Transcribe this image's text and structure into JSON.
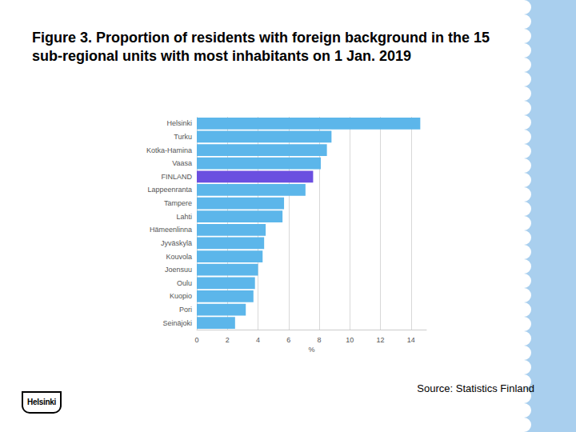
{
  "chart_data": {
    "type": "bar",
    "orientation": "horizontal",
    "title": "Figure 3. Proportion of residents with foreign background in the 15 sub-regional units with most inhabitants on 1 Jan. 2019",
    "categories": [
      "Helsinki",
      "Turku",
      "Kotka-Hamina",
      "Vaasa",
      "FINLAND",
      "Lappeenranta",
      "Tampere",
      "Lahti",
      "Hämeenlinna",
      "Jyväskylä",
      "Kouvola",
      "Joensuu",
      "Oulu",
      "Kuopio",
      "Pori",
      "Seinäjoki"
    ],
    "values": [
      14.6,
      8.8,
      8.5,
      8.1,
      7.6,
      7.1,
      5.7,
      5.6,
      4.5,
      4.4,
      4.3,
      4.0,
      3.8,
      3.7,
      3.2,
      2.5
    ],
    "colors": [
      "#5cb6ea",
      "#5cb6ea",
      "#5cb6ea",
      "#5cb6ea",
      "#6b4fe0",
      "#5cb6ea",
      "#5cb6ea",
      "#5cb6ea",
      "#5cb6ea",
      "#5cb6ea",
      "#5cb6ea",
      "#5cb6ea",
      "#5cb6ea",
      "#5cb6ea",
      "#5cb6ea",
      "#5cb6ea"
    ],
    "xlabel": "%",
    "xlim": [
      0,
      15
    ],
    "xticks": [
      0,
      2,
      4,
      6,
      8,
      10,
      12,
      14
    ],
    "grid": true
  },
  "source": "Source: Statistics Finland",
  "logo": "Helsinki"
}
